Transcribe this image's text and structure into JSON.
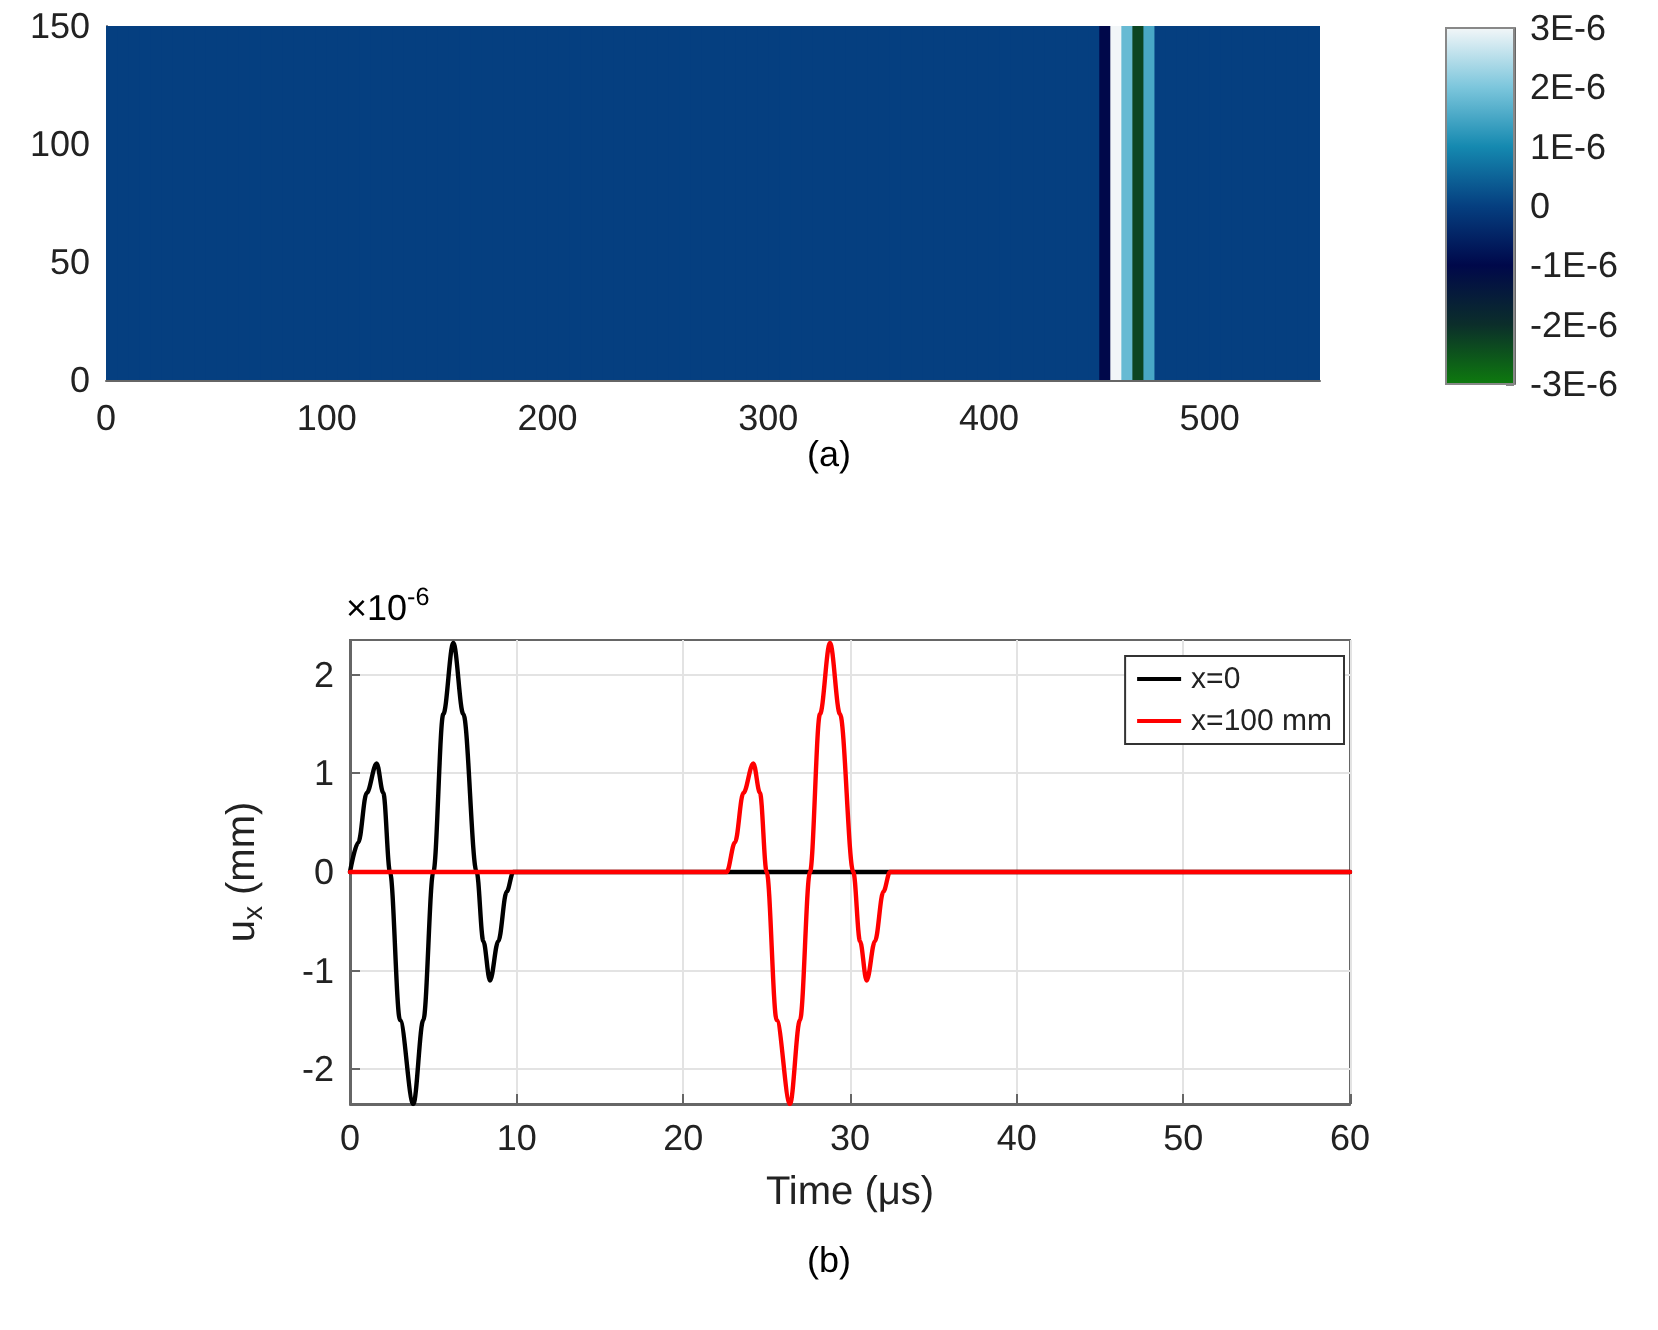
{
  "chart_data": [
    {
      "type": "heatmap",
      "annotations": [
        "(a)"
      ],
      "x": [
        2.5,
        7.5,
        12.5,
        17.5,
        22.5,
        27.5,
        32.5,
        37.5,
        42.5,
        47.5,
        52.5,
        57.5,
        62.5,
        67.5,
        72.5,
        77.5,
        82.5,
        87.5,
        92.5,
        97.5,
        102.5,
        107.5,
        112.5,
        117.5,
        122.5,
        127.5,
        132.5,
        137.5,
        142.5,
        147.5,
        152.5,
        157.5,
        162.5,
        167.5,
        172.5,
        177.5,
        182.5,
        187.5,
        192.5,
        197.5,
        202.5,
        207.5,
        212.5,
        217.5,
        222.5,
        227.5,
        232.5,
        237.5,
        242.5,
        247.5,
        252.5,
        257.5,
        262.5,
        267.5,
        272.5,
        277.5,
        282.5,
        287.5,
        292.5,
        297.5,
        302.5,
        307.5,
        312.5,
        317.5,
        322.5,
        327.5,
        332.5,
        337.5,
        342.5,
        347.5,
        352.5,
        357.5,
        362.5,
        367.5,
        372.5,
        377.5,
        382.5,
        387.5,
        392.5,
        397.5,
        402.5,
        407.5,
        412.5,
        417.5,
        422.5,
        427.5,
        432.5,
        437.5,
        442.5,
        447.5,
        452.5,
        457.5,
        462.5,
        467.5,
        472.5,
        477.5,
        482.5,
        487.5,
        492.5,
        497.5,
        502.5,
        507.5,
        512.5,
        517.5,
        522.5,
        527.5,
        532.5,
        537.5,
        542.5,
        547.5
      ],
      "cells": [
        [
          0,
          0,
          0,
          0,
          0,
          0,
          0,
          0,
          0,
          0,
          0,
          0,
          0,
          0,
          0,
          0,
          0,
          0,
          0,
          0,
          0,
          0,
          0,
          0,
          0,
          0,
          0,
          0,
          0,
          0,
          0,
          0,
          0,
          0,
          0,
          0,
          0,
          0,
          0,
          0,
          0,
          0,
          0,
          0,
          0,
          0,
          0,
          0,
          0,
          0,
          0,
          0,
          0,
          0,
          0,
          0,
          0,
          0,
          0,
          0,
          0,
          0,
          0,
          0,
          0,
          0,
          0,
          0,
          0,
          0,
          0,
          0,
          0,
          0,
          0,
          0,
          0,
          0,
          0,
          0,
          0,
          0,
          0,
          0,
          0,
          0,
          0,
          0,
          0,
          0,
          -1e-06,
          3e-06,
          1.8e-06,
          -2.3e-06,
          1.5e-06,
          0,
          0,
          0,
          0,
          0,
          0,
          0,
          0,
          0,
          0,
          0,
          0,
          0,
          0,
          0
        ]
      ],
      "xlim": [
        0,
        550
      ],
      "xticks": [
        0,
        100,
        200,
        300,
        400,
        500
      ],
      "ylim": [
        0,
        150
      ],
      "yticks": [
        0,
        50,
        100,
        150
      ],
      "clim": [
        -3e-06,
        3e-06
      ],
      "cticks": [
        {
          "value": -3e-06,
          "label": "-3E-6"
        },
        {
          "value": -2e-06,
          "label": "-2E-6"
        },
        {
          "value": -1e-06,
          "label": "-1E-6"
        },
        0,
        {
          "value": 1e-06,
          "label": "1E-6"
        },
        {
          "value": 2e-06,
          "label": "2E-6"
        },
        {
          "value": 3e-06,
          "label": "3E-6"
        }
      ]
    },
    {
      "type": "line",
      "xlabel": "Time (μs)",
      "ylabel": "u$_{x}$ (mm)",
      "annotations": [
        "×10$^{-6}$",
        "(b)"
      ],
      "xlim": [
        0,
        60
      ],
      "xticks": [
        0,
        10,
        20,
        30,
        40,
        50,
        60
      ],
      "ylim": [
        -2.35,
        2.35
      ],
      "yticks": [
        -2,
        -1,
        0,
        1,
        2
      ],
      "grid": true,
      "legend": "top right",
      "marker": "none",
      "line_style": "solid",
      "series": [
        {
          "name": "x=0",
          "color": "#000000",
          "x": [
            0,
            0.5,
            1.0,
            1.6,
            2.0,
            2.4,
            3.0,
            3.8,
            4.4,
            5.0,
            5.6,
            6.2,
            6.8,
            7.6,
            8.0,
            8.4,
            8.9,
            9.4,
            9.8,
            60
          ],
          "values": [
            0,
            0.3,
            0.8,
            1.1,
            0.8,
            0,
            -1.5,
            -2.35,
            -1.5,
            0,
            1.6,
            2.32,
            1.6,
            0,
            -0.7,
            -1.1,
            -0.7,
            -0.2,
            0,
            0
          ]
        },
        {
          "name": "x=100 mm",
          "color": "#ff0000",
          "x": [
            0,
            22.6,
            23.1,
            23.6,
            24.2,
            24.6,
            25.0,
            25.6,
            26.4,
            27.0,
            27.6,
            28.2,
            28.8,
            29.4,
            30.2,
            30.6,
            31.0,
            31.5,
            32.0,
            32.4,
            60
          ],
          "values": [
            0,
            0,
            0.3,
            0.8,
            1.1,
            0.8,
            0,
            -1.5,
            -2.35,
            -1.5,
            0,
            1.6,
            2.32,
            1.6,
            0,
            -0.7,
            -1.1,
            -0.7,
            -0.2,
            0,
            0
          ]
        }
      ]
    }
  ]
}
